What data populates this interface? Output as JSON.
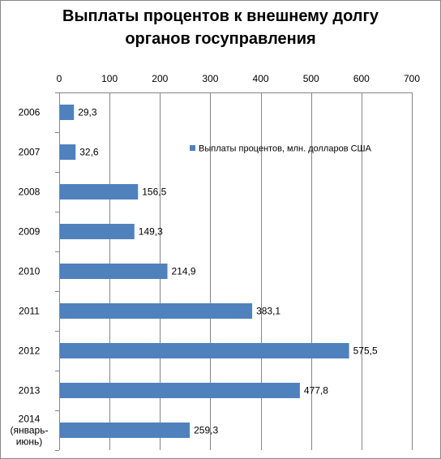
{
  "title": {
    "line1": "Выплаты процентов к внешнему долгу",
    "line2": "органов госуправления"
  },
  "chart_data": {
    "type": "bar",
    "orientation": "horizontal",
    "categories": [
      [
        "2006"
      ],
      [
        "2007"
      ],
      [
        "2008"
      ],
      [
        "2009"
      ],
      [
        "2010"
      ],
      [
        "2011"
      ],
      [
        "2012"
      ],
      [
        "2013"
      ],
      [
        "2014",
        "(январь-",
        "июнь)"
      ]
    ],
    "series": [
      {
        "name": "Выплаты процентов,  млн. долларов США",
        "values": [
          29.3,
          32.6,
          156.5,
          149.3,
          214.9,
          383.1,
          575.5,
          477.8,
          259.3
        ],
        "labels": [
          "29,3",
          "32,6",
          "156,5",
          "149,3",
          "214,9",
          "383,1",
          "575,5",
          "477,8",
          "259,3"
        ],
        "color": "#4f81bd"
      }
    ],
    "xlim": [
      0,
      700
    ],
    "xticks": [
      0,
      100,
      200,
      300,
      400,
      500,
      600,
      700
    ],
    "x_axis_position": "top",
    "grid": "vertical",
    "legend_position": "inside-top-right",
    "gridline_color": "#868686"
  }
}
